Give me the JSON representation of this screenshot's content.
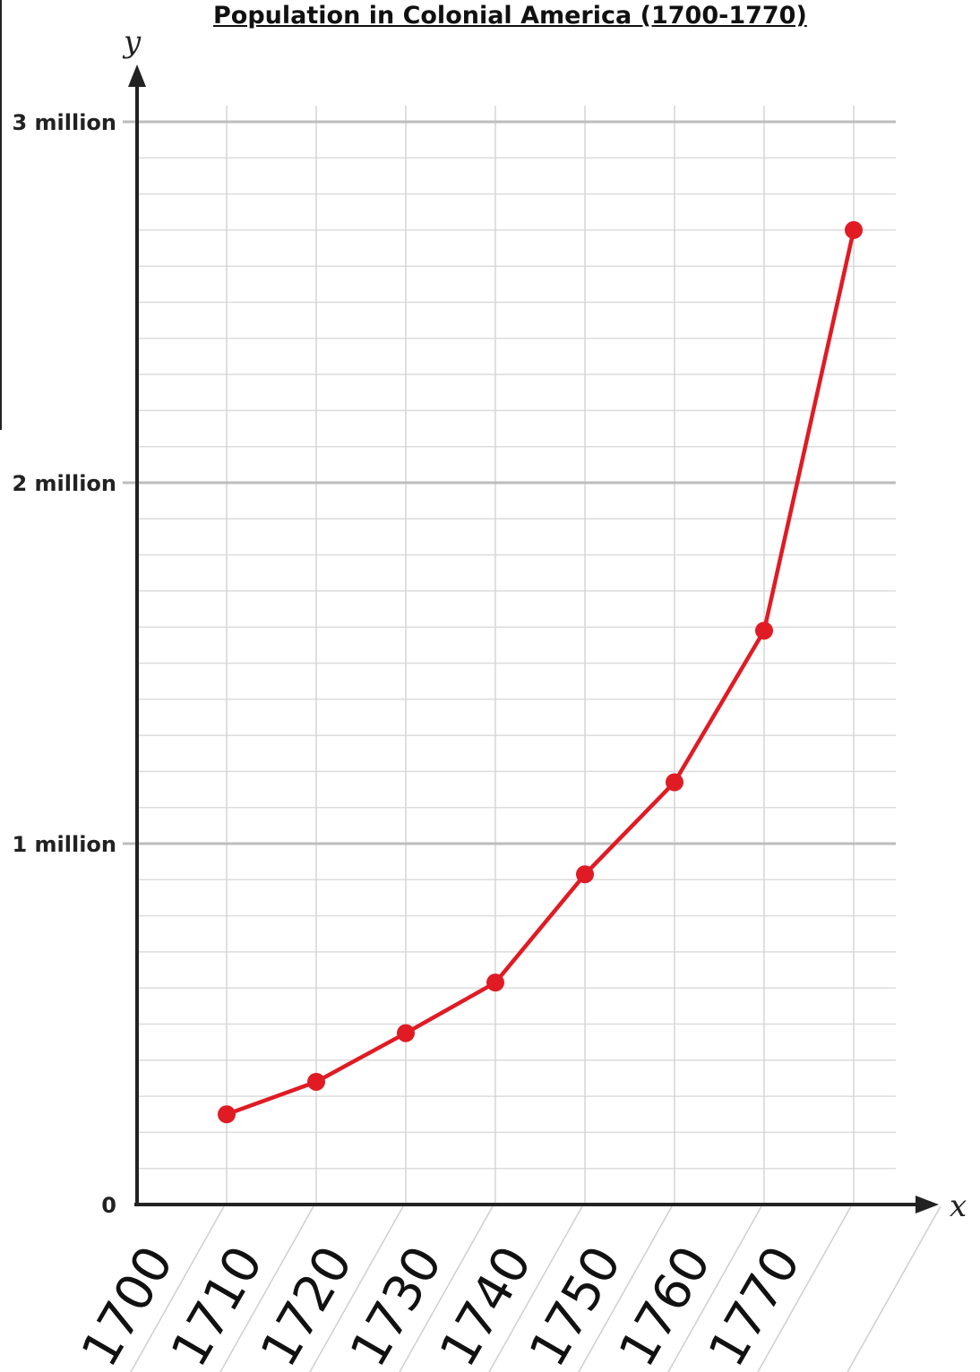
{
  "chart_data": {
    "type": "line",
    "title": "Population in Colonial America (1700-1770)",
    "xlabel": "x",
    "ylabel": "y",
    "categories": [
      "1700",
      "1710",
      "1720",
      "1730",
      "1740",
      "1750",
      "1760",
      "1770"
    ],
    "x_tick_labels": [
      "1700",
      "1710",
      "1720",
      "1730",
      "1740",
      "1750",
      "1760",
      "1770"
    ],
    "x_points": [
      1710,
      1720,
      1730,
      1740,
      1750,
      1760,
      1770,
      1780
    ],
    "series": [
      {
        "values": [
          250000,
          340000,
          475000,
          615000,
          915000,
          1170000,
          1590000,
          2700000
        ]
      }
    ],
    "y_ticks": [
      {
        "value": 0,
        "label": "0"
      },
      {
        "value": 1000000,
        "label": "1 million"
      },
      {
        "value": 2000000,
        "label": "2 million"
      },
      {
        "value": 3000000,
        "label": "3 million"
      }
    ],
    "ylim": [
      0,
      3000000
    ],
    "xlim": [
      1700,
      1790
    ],
    "minor_grid_step": 100000,
    "grid": true,
    "line_color": "#e01b24"
  }
}
